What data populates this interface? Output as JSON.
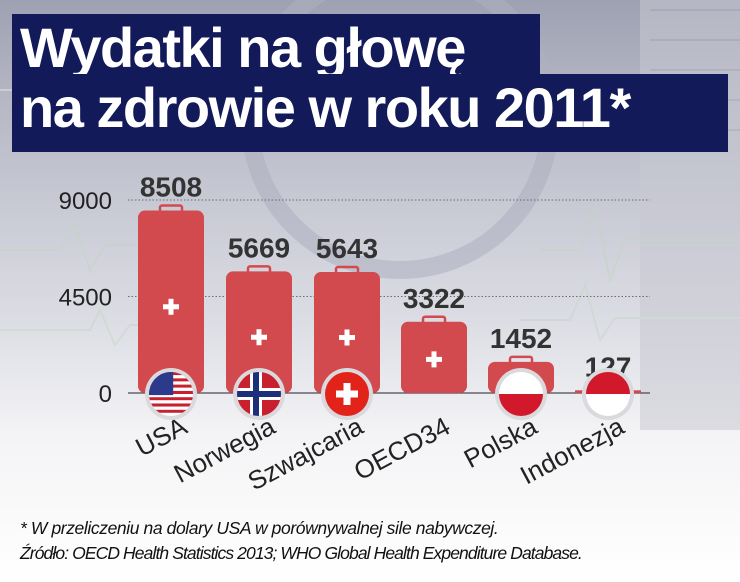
{
  "title": {
    "line1": "Wydatki na głowę",
    "line2": "na zdrowie w roku 2011*"
  },
  "chart_data": {
    "type": "bar",
    "categories": [
      "USA",
      "Norwegia",
      "Szwajcaria",
      "OECD34",
      "Polska",
      "Indonezja"
    ],
    "values": [
      8508,
      5669,
      5643,
      3322,
      1452,
      127
    ],
    "value_labels": [
      "8508",
      "5669",
      "5643",
      "3322",
      "1452",
      "127"
    ],
    "yticks": [
      0,
      4500,
      9000
    ],
    "ytick_labels": [
      "0",
      "4500",
      "9000"
    ],
    "ylim": [
      0,
      9000
    ],
    "grid": true,
    "flags": [
      "usa-flag",
      "norway-flag",
      "switzerland-flag",
      null,
      "poland-flag",
      "indonesia-flag"
    ],
    "bar_color": "#d24a4e"
  },
  "footnotes": {
    "note": "* W przeliczeniu na dolary USA w porównywalnej sile nabywczej.",
    "source": "Źródło: OECD Health Statistics 2013; WHO Global Health Expenditure Database."
  }
}
